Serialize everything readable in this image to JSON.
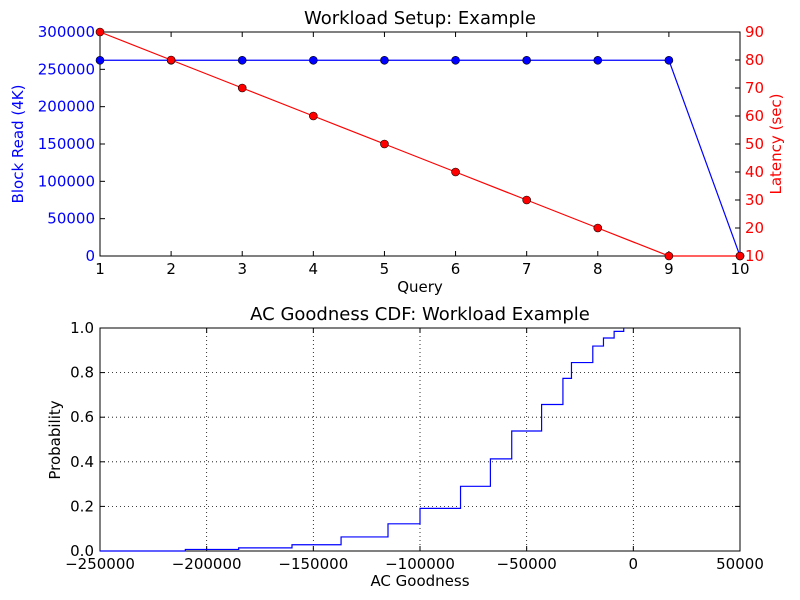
{
  "chart_data": [
    {
      "type": "line",
      "title": "Workload Setup: Example",
      "xlabel": "Query",
      "ylabel": "Block Read (4K)",
      "y2label": "Latency (sec)",
      "x": [
        1,
        2,
        3,
        4,
        5,
        6,
        7,
        8,
        9,
        10
      ],
      "xlim": [
        1,
        10
      ],
      "ylim": [
        0,
        300000
      ],
      "y2lim": [
        10,
        90
      ],
      "xticks": [
        "1",
        "2",
        "3",
        "4",
        "5",
        "6",
        "7",
        "8",
        "9",
        "10"
      ],
      "yticks": [
        "0",
        "50000",
        "100000",
        "150000",
        "200000",
        "250000",
        "300000"
      ],
      "y2ticks": [
        "10",
        "20",
        "30",
        "40",
        "50",
        "60",
        "70",
        "80",
        "90"
      ],
      "grid": false,
      "series": [
        {
          "axis": "left",
          "color": "#0000ff",
          "marker": "circle",
          "values": [
            262144,
            262144,
            262144,
            262144,
            262144,
            262144,
            262144,
            262144,
            262144,
            0
          ]
        },
        {
          "axis": "right",
          "color": "#ff0000",
          "marker": "circle",
          "values": [
            90,
            80,
            70,
            60,
            50,
            40,
            30,
            20,
            10,
            10
          ]
        }
      ]
    },
    {
      "type": "line",
      "subtype": "step-cdf",
      "title": "AC Goodness CDF: Workload Example",
      "xlabel": "AC Goodness",
      "ylabel": "Probability",
      "xlim": [
        -250000,
        50000
      ],
      "ylim": [
        0.0,
        1.0
      ],
      "xticks": [
        "−250000",
        "−200000",
        "−150000",
        "−100000",
        "−50000",
        "0",
        "50000"
      ],
      "yticks": [
        "0.0",
        "0.2",
        "0.4",
        "0.6",
        "0.8",
        "1.0"
      ],
      "grid": true,
      "series": [
        {
          "color": "#0000ff",
          "x": [
            -210000,
            -185000,
            -160000,
            -137000,
            -115000,
            -100000,
            -81000,
            -67000,
            -57000,
            -43000,
            -33000,
            -29000,
            -19000,
            -14000,
            -9000,
            -4500
          ],
          "y": [
            0.007,
            0.014,
            0.028,
            0.063,
            0.122,
            0.191,
            0.29,
            0.413,
            0.538,
            0.657,
            0.774,
            0.845,
            0.919,
            0.955,
            0.985,
            1.0
          ]
        }
      ]
    }
  ]
}
